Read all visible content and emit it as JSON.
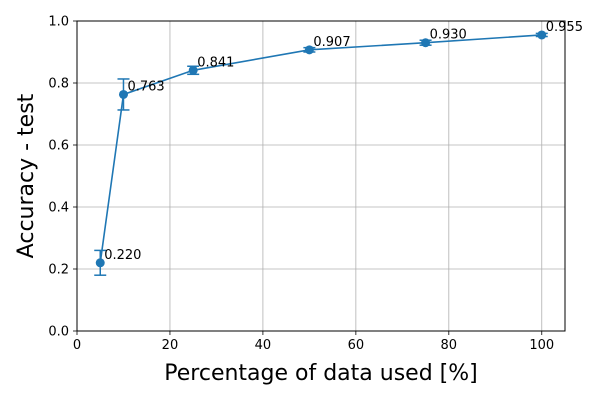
{
  "chart_data": {
    "type": "line",
    "title": "",
    "xlabel": "Percentage of data used [%]",
    "ylabel": "Accuracy - test",
    "xlim": [
      0,
      105
    ],
    "ylim": [
      0.0,
      1.0
    ],
    "xticks": [
      0,
      20,
      40,
      60,
      80,
      100
    ],
    "xtick_labels": [
      "0",
      "20",
      "40",
      "60",
      "80",
      "100"
    ],
    "yticks": [
      0.0,
      0.2,
      0.4,
      0.6,
      0.8,
      1.0
    ],
    "ytick_labels": [
      "0.0",
      "0.2",
      "0.4",
      "0.6",
      "0.8",
      "1.0"
    ],
    "grid": true,
    "series": [
      {
        "color": "#1f77b4",
        "x": [
          5,
          10,
          25,
          50,
          75,
          100
        ],
        "y": [
          0.22,
          0.763,
          0.841,
          0.907,
          0.93,
          0.955
        ],
        "yerr": [
          0.04,
          0.05,
          0.013,
          0.007,
          0.008,
          0.005
        ],
        "labels": [
          "0.220",
          "0.763",
          "0.841",
          "0.907",
          "0.930",
          "0.955"
        ]
      }
    ]
  }
}
